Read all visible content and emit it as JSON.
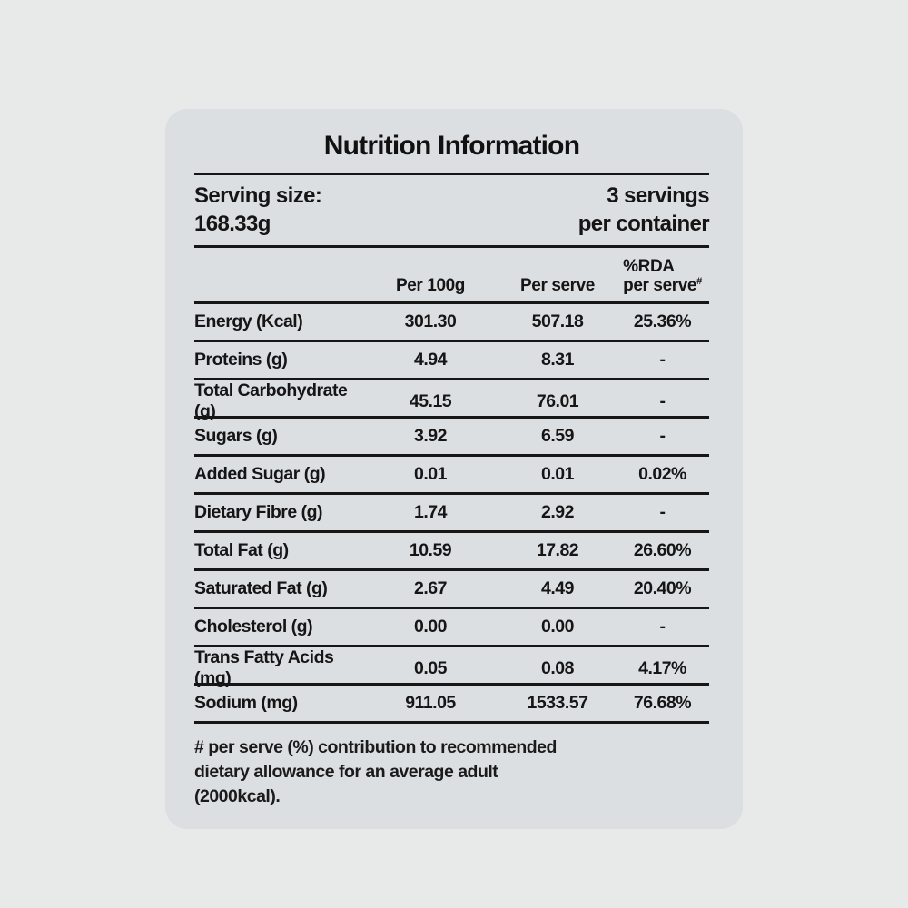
{
  "title": "Nutrition Information",
  "serving": {
    "label": "Serving size:",
    "size": "168.33g",
    "servings_line1": "3 servings",
    "servings_line2": "per container"
  },
  "columns": {
    "per_100g": "Per 100g",
    "per_serve": "Per serve",
    "rda_line1": "%RDA",
    "rda_line2": "per serve",
    "rda_superscript": "#"
  },
  "rows": [
    {
      "label": "Energy (Kcal)",
      "per_100g": "301.30",
      "per_serve": "507.18",
      "rda": "25.36%"
    },
    {
      "label": "Proteins (g)",
      "per_100g": "4.94",
      "per_serve": "8.31",
      "rda": "-"
    },
    {
      "label": "Total Carbohydrate (g)",
      "per_100g": "45.15",
      "per_serve": "76.01",
      "rda": "-"
    },
    {
      "label": "Sugars (g)",
      "per_100g": "3.92",
      "per_serve": "6.59",
      "rda": "-"
    },
    {
      "label": "Added Sugar (g)",
      "per_100g": "0.01",
      "per_serve": "0.01",
      "rda": "0.02%"
    },
    {
      "label": "Dietary Fibre (g)",
      "per_100g": "1.74",
      "per_serve": "2.92",
      "rda": "-"
    },
    {
      "label": "Total Fat (g)",
      "per_100g": "10.59",
      "per_serve": "17.82",
      "rda": "26.60%"
    },
    {
      "label": "Saturated Fat (g)",
      "per_100g": "2.67",
      "per_serve": "4.49",
      "rda": "20.40%"
    },
    {
      "label": "Cholesterol (g)",
      "per_100g": "0.00",
      "per_serve": "0.00",
      "rda": "-"
    },
    {
      "label": "Trans Fatty Acids (mg)",
      "per_100g": "0.05",
      "per_serve": "0.08",
      "rda": "4.17%"
    },
    {
      "label": "Sodium (mg)",
      "per_100g": "911.05",
      "per_serve": "1533.57",
      "rda": "76.68%"
    }
  ],
  "footnote": "# per serve (%) contribution to recommended dietary allowance for an average adult (2000kcal).",
  "colors": {
    "background": "#e8e9e9",
    "card": "#dcdfe2",
    "text": "#151515",
    "rule": "#161616"
  }
}
